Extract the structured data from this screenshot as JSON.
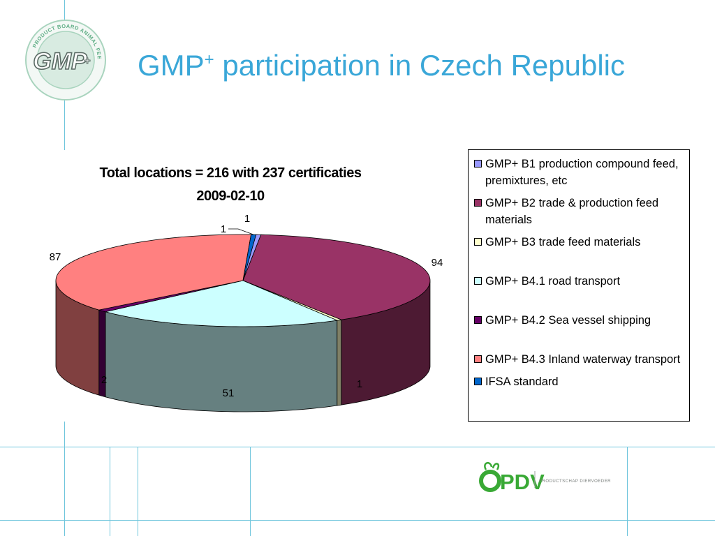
{
  "header": {
    "title_main": "GMP",
    "title_sup": "+",
    "title_rest": " participation in Czech Republic"
  },
  "logo": {
    "ring_text": "PRODUCT BOARD ANIMAL FEED",
    "mark": "GMP",
    "mark_sup": "+"
  },
  "footer_logo": {
    "brand": "PDV",
    "tagline": "PRODUCTSCHAP DIERVOEDER"
  },
  "chart_data": {
    "type": "pie",
    "three_d": true,
    "title": "Total locations = 216 with 237 certificaties",
    "subtitle": "2009-02-10",
    "legend_position": "right",
    "series": [
      {
        "name": "GMP+ B1 production compound feed, premixtures, etc",
        "value": 1,
        "color": "#9999ff"
      },
      {
        "name": "GMP+ B2 trade & production feed materials",
        "value": 94,
        "color": "#993366"
      },
      {
        "name": "GMP+ B3 trade  feed materials",
        "value": 1,
        "color": "#ffffcc"
      },
      {
        "name": "GMP+ B4.1 road transport",
        "value": 51,
        "color": "#ccffff"
      },
      {
        "name": "GMP+ B4.2 Sea vessel shipping",
        "value": 2,
        "color": "#660066"
      },
      {
        "name": "GMP+ B4.3 Inland waterway transport",
        "value": 87,
        "color": "#ff8080"
      },
      {
        "name": "IFSA standard",
        "value": 1,
        "color": "#0066cc"
      }
    ],
    "data_labels": [
      "1",
      "94",
      "1",
      "51",
      "2",
      "87",
      "1"
    ]
  }
}
